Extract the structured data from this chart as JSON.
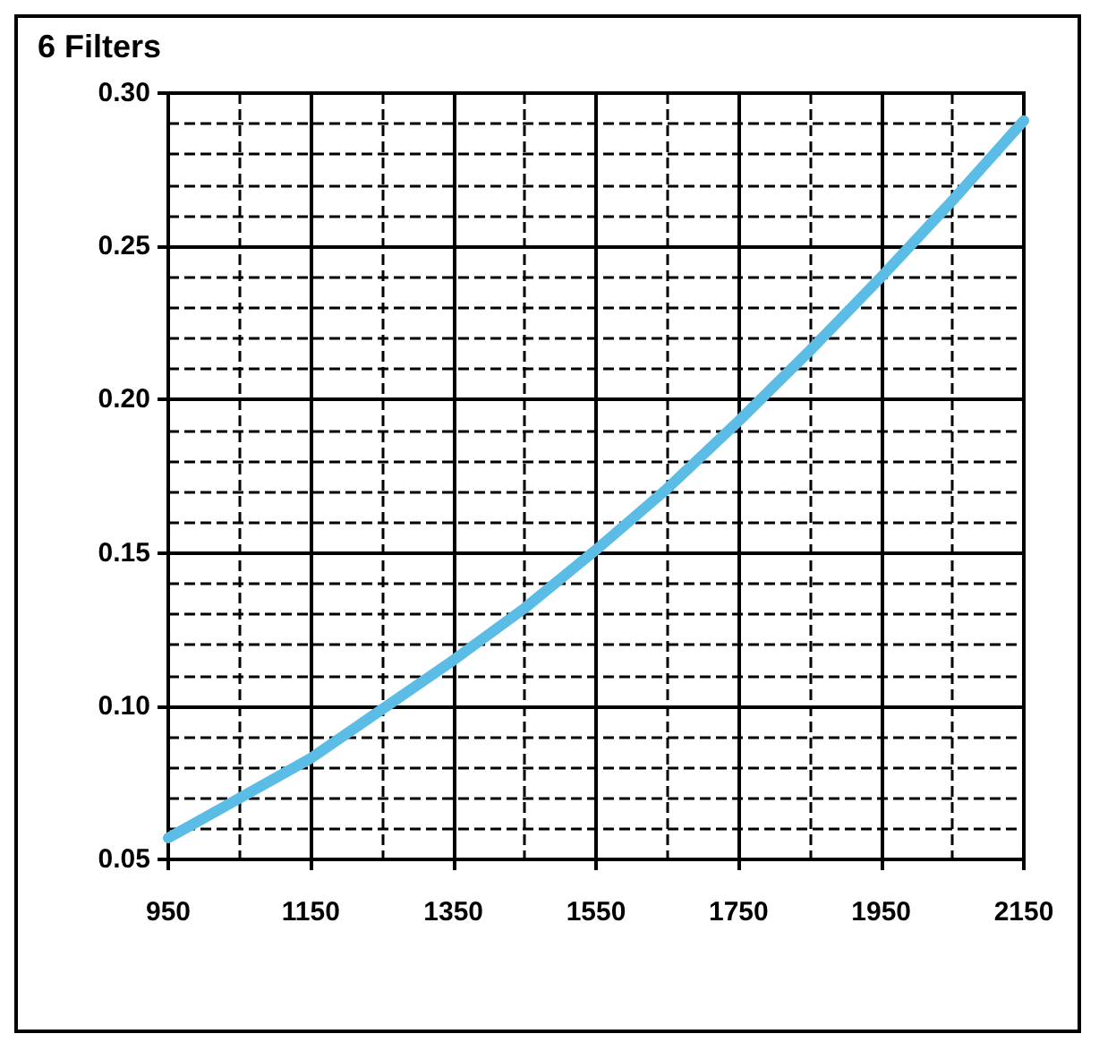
{
  "chart_data": {
    "type": "line",
    "title": "6 Filters",
    "x": [
      950,
      1050,
      1150,
      1250,
      1350,
      1450,
      1550,
      1650,
      1750,
      1850,
      1950,
      2050,
      2150
    ],
    "series": [
      {
        "color": "#5bbde6",
        "values": [
          0.057,
          0.07,
          0.083,
          0.099,
          0.115,
          0.132,
          0.151,
          0.171,
          0.193,
          0.216,
          0.24,
          0.265,
          0.291
        ]
      }
    ],
    "xlim": [
      950,
      2150
    ],
    "xticks": [
      950,
      1150,
      1350,
      1550,
      1750,
      1950,
      2150
    ],
    "ylim": [
      0.05,
      0.3
    ],
    "yticks": [
      0.05,
      {
        "value": 0.1,
        "label": "0.10"
      },
      0.15,
      {
        "value": 0.2,
        "label": "0.20"
      },
      0.25,
      {
        "value": 0.3,
        "label": "0.30"
      }
    ],
    "grid": true,
    "marker": "none",
    "line_style": "solid"
  }
}
